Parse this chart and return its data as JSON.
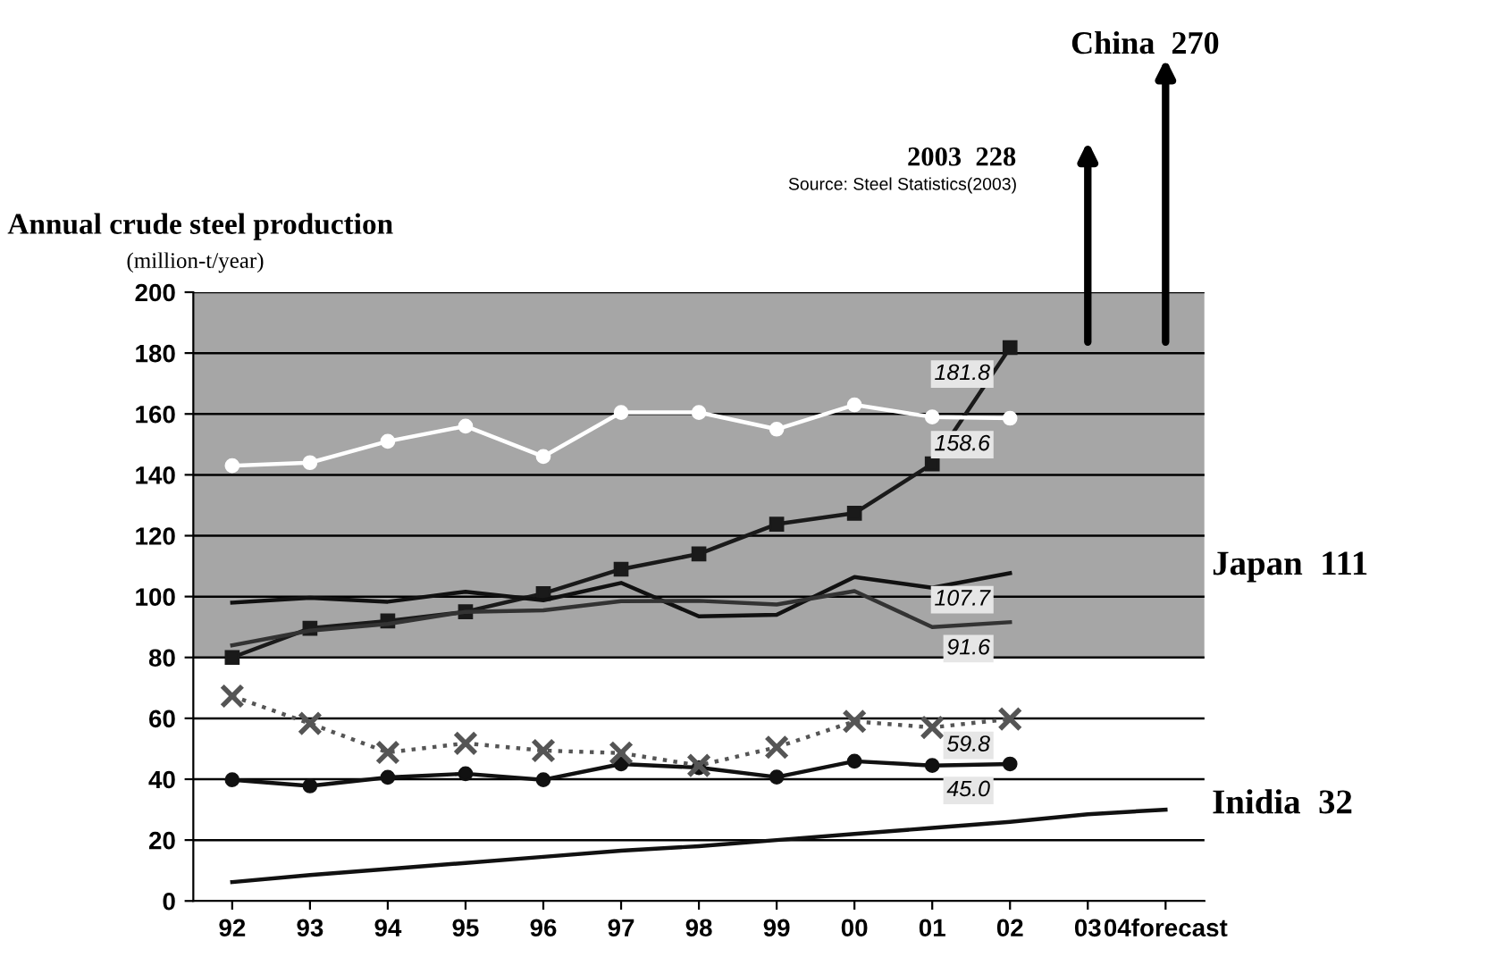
{
  "chart_data": {
    "type": "line",
    "title": "Annual crude steel production",
    "subtitle": "(million-t/year)",
    "categories": [
      "92",
      "93",
      "94",
      "95",
      "96",
      "97",
      "98",
      "99",
      "00",
      "01",
      "02",
      "03",
      "04forecast"
    ],
    "series": [
      {
        "color": "#1a1a1a",
        "marker": "square",
        "values": [
          80,
          89.6,
          92,
          95,
          101,
          109,
          114,
          123.8,
          127.4,
          143.6,
          181.8,
          null,
          null
        ],
        "value_labels": [
          null,
          null,
          null,
          null,
          null,
          null,
          null,
          null,
          null,
          null,
          "181.8",
          null,
          null
        ]
      },
      {
        "color": "#ffffff",
        "marker": "circle",
        "values": [
          143,
          144,
          151,
          156,
          146,
          160.5,
          160.5,
          155,
          163,
          159,
          158.6,
          null,
          null
        ],
        "value_labels": [
          null,
          null,
          null,
          null,
          null,
          null,
          null,
          null,
          null,
          null,
          "158.6",
          null,
          null
        ]
      },
      {
        "color": "#111111",
        "marker": "none",
        "values": [
          98,
          99.6,
          98.3,
          101.6,
          98.8,
          104.5,
          93.5,
          94,
          106.4,
          102.9,
          107.7,
          null,
          null
        ],
        "value_labels": [
          null,
          null,
          null,
          null,
          null,
          null,
          null,
          null,
          null,
          null,
          "107.7",
          null,
          null
        ]
      },
      {
        "color": "#333333",
        "marker": "none",
        "values": [
          84,
          88.8,
          91,
          95,
          95.5,
          98.5,
          98.6,
          97.4,
          101.8,
          90,
          91.6,
          null,
          null
        ],
        "value_labels": [
          null,
          null,
          null,
          null,
          null,
          null,
          null,
          null,
          null,
          null,
          "91.6",
          null,
          null
        ]
      },
      {
        "color": "#555555",
        "marker": "cross",
        "line_style": "dotted",
        "values": [
          67.3,
          58.3,
          48.8,
          51.8,
          49.4,
          48.6,
          44.5,
          50.5,
          59,
          57,
          59.8,
          null,
          null
        ],
        "value_labels": [
          null,
          null,
          null,
          null,
          null,
          null,
          null,
          null,
          null,
          null,
          "59.8",
          null,
          null
        ]
      },
      {
        "color": "#111111",
        "marker": "circle",
        "values": [
          39.8,
          37.8,
          40.6,
          41.8,
          39.8,
          45,
          43.8,
          40.7,
          45.9,
          44.5,
          45.0,
          null,
          null
        ],
        "value_labels": [
          null,
          null,
          null,
          null,
          null,
          null,
          null,
          null,
          null,
          null,
          "45.0",
          null,
          null
        ]
      },
      {
        "color": "#111111",
        "marker": "none",
        "values": [
          6.2,
          8.5,
          10.5,
          12.5,
          14.5,
          16.5,
          18,
          20,
          22,
          24,
          26,
          28.5,
          30
        ]
      }
    ],
    "ylim": [
      0,
      200
    ],
    "yticks": [
      0,
      20,
      40,
      60,
      80,
      100,
      120,
      140,
      160,
      180,
      200
    ],
    "grid": "y",
    "bands": [
      {
        "axis": "y",
        "from": 80,
        "to": 200,
        "color": "#a6a6a6"
      }
    ],
    "annotations": [
      "Source: Steel Statistics(2003)",
      "2003  228",
      "China  270",
      "Japan  111",
      "Inidia  32"
    ]
  }
}
